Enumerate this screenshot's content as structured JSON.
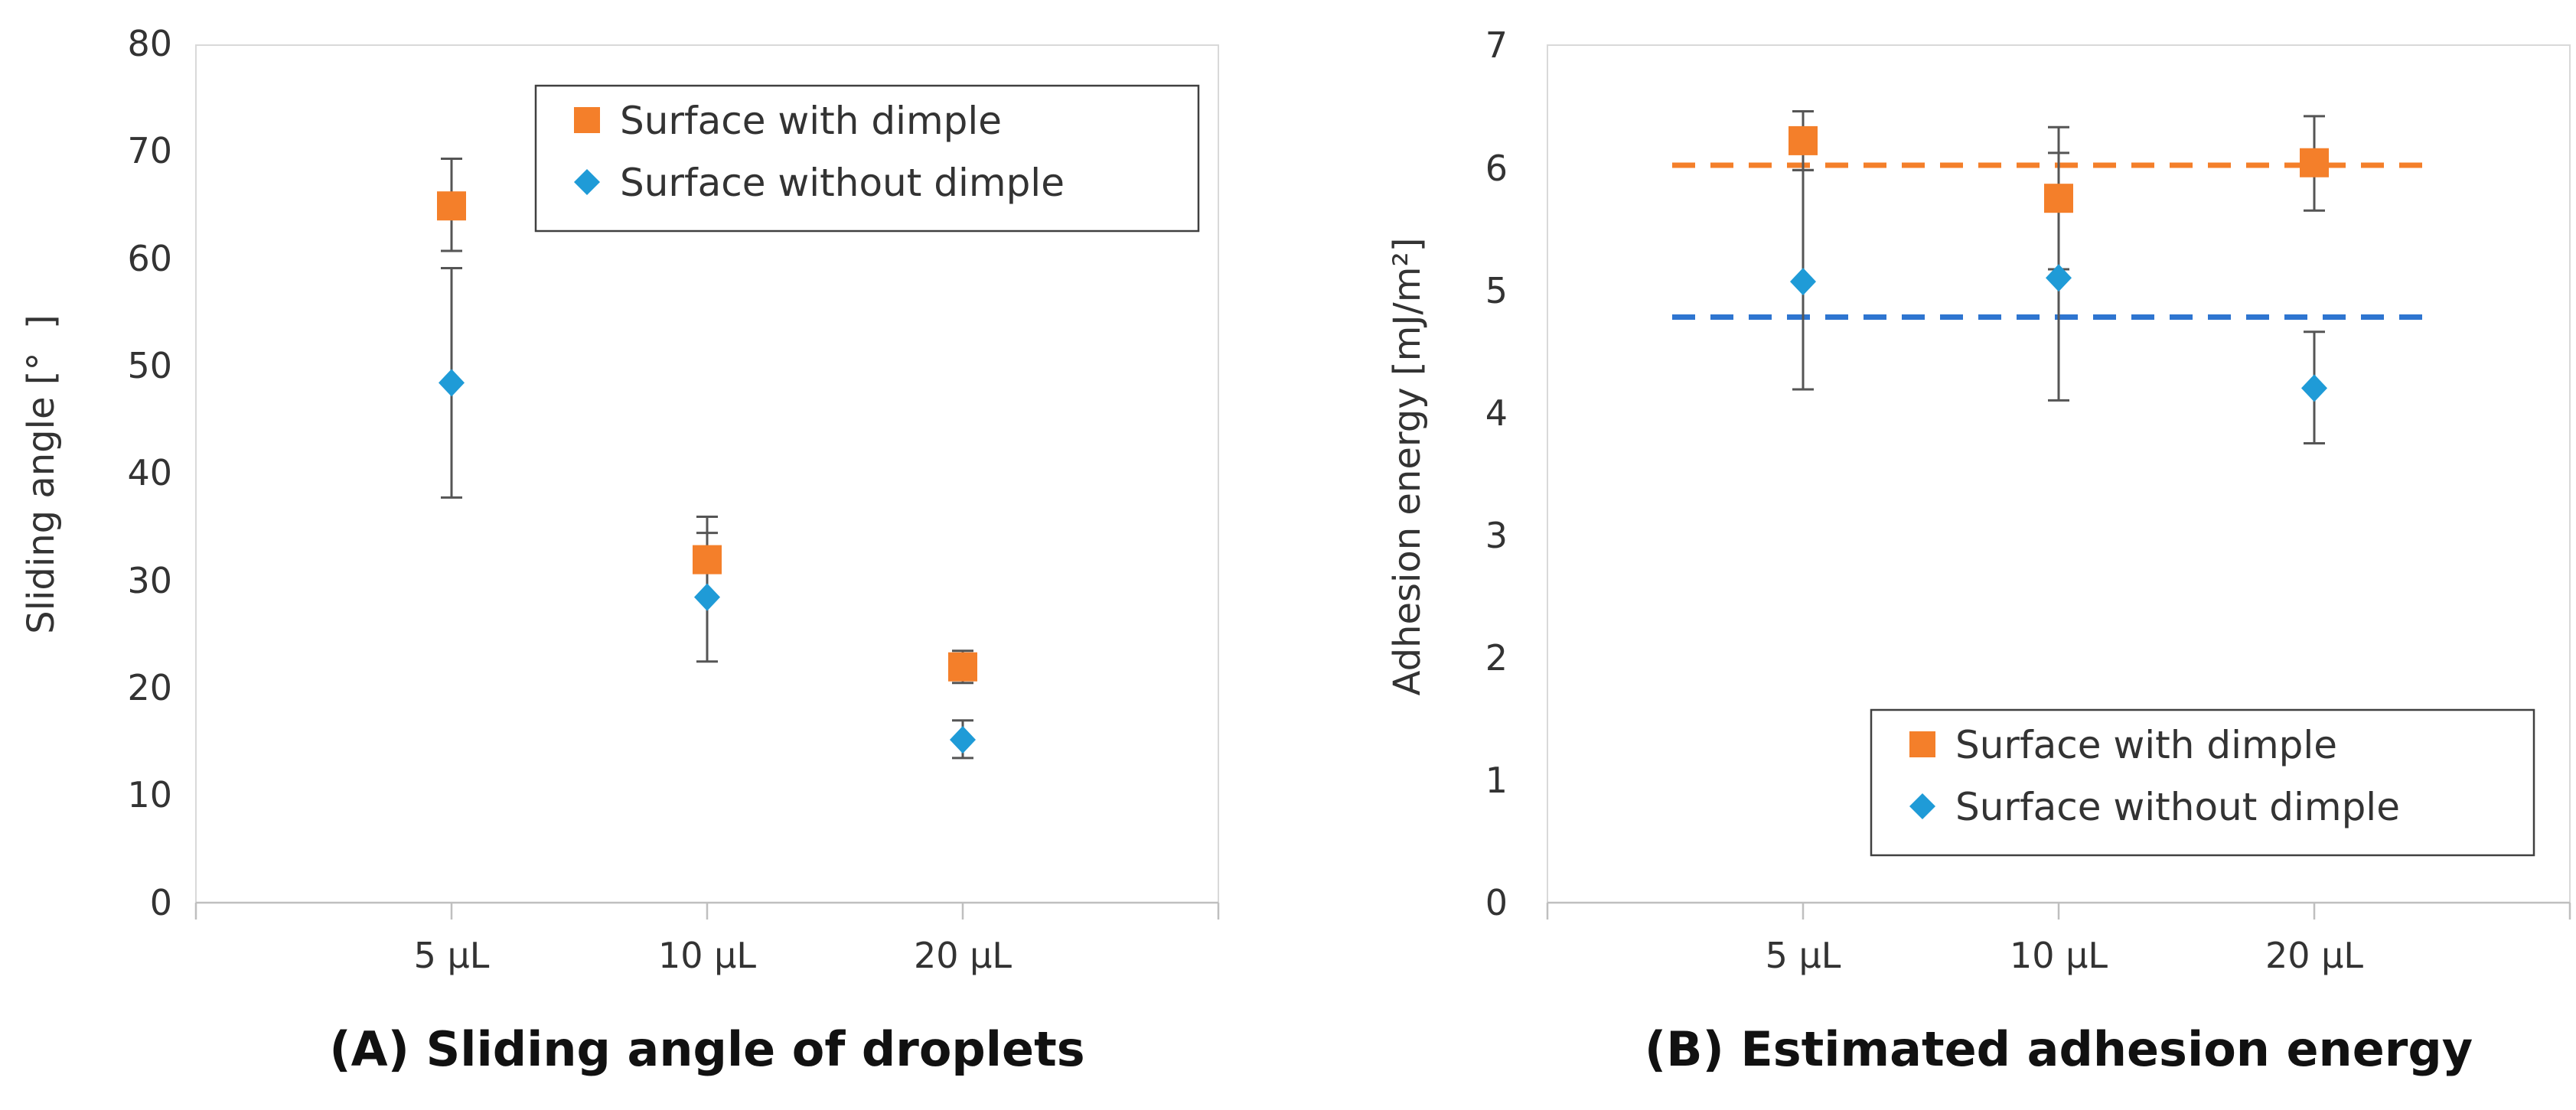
{
  "chart_data": [
    {
      "type": "scatter",
      "panel": "A",
      "caption": "(A) Sliding angle of droplets",
      "title": "",
      "xlabel": "",
      "ylabel": "Sliding angle [°  ]",
      "categories": [
        "5 μL",
        "10 μL",
        "20 μL"
      ],
      "ylim": [
        0,
        80
      ],
      "yticks": [
        "0",
        "10",
        "20",
        "30",
        "40",
        "50",
        "60",
        "70",
        "80"
      ],
      "grid": false,
      "legend_position": "top-right",
      "series": [
        {
          "name": "Surface with dimple",
          "marker": "square",
          "color": "#F47F2A",
          "values": [
            65,
            32,
            22
          ],
          "error_low": [
            60.8,
            28.5,
            20.5
          ],
          "error_high": [
            69.4,
            36,
            23.5
          ]
        },
        {
          "name": "Surface without dimple",
          "marker": "diamond",
          "color": "#1F9BD7",
          "values": [
            48.5,
            28.5,
            15.2
          ],
          "error_low": [
            37.8,
            22.5,
            13.5
          ],
          "error_high": [
            59.2,
            34.5,
            17
          ]
        }
      ]
    },
    {
      "type": "scatter",
      "panel": "B",
      "caption": "(B) Estimated adhesion energy",
      "title": "",
      "xlabel": "",
      "ylabel": "Adhesion energy [mJ/m²]",
      "categories": [
        "5 μL",
        "10 μL",
        "20 μL"
      ],
      "ylim": [
        0,
        7
      ],
      "yticks": [
        "0",
        "1",
        "2",
        "3",
        "4",
        "5",
        "6",
        "7"
      ],
      "grid": false,
      "legend_position": "bottom-right",
      "series": [
        {
          "name": "Surface with dimple",
          "marker": "square",
          "color": "#F47F2A",
          "values": [
            6.22,
            5.75,
            6.04
          ],
          "error_low": [
            5.98,
            5.17,
            5.65
          ],
          "error_high": [
            6.46,
            6.33,
            6.42
          ],
          "mean_line": 6.02
        },
        {
          "name": "Surface without dimple",
          "marker": "diamond",
          "color": "#1F9BD7",
          "values": [
            5.07,
            5.1,
            4.2
          ],
          "error_low": [
            4.19,
            4.1,
            3.75
          ],
          "error_high": [
            5.98,
            6.12,
            4.66
          ],
          "mean_line": 4.78
        }
      ]
    }
  ]
}
